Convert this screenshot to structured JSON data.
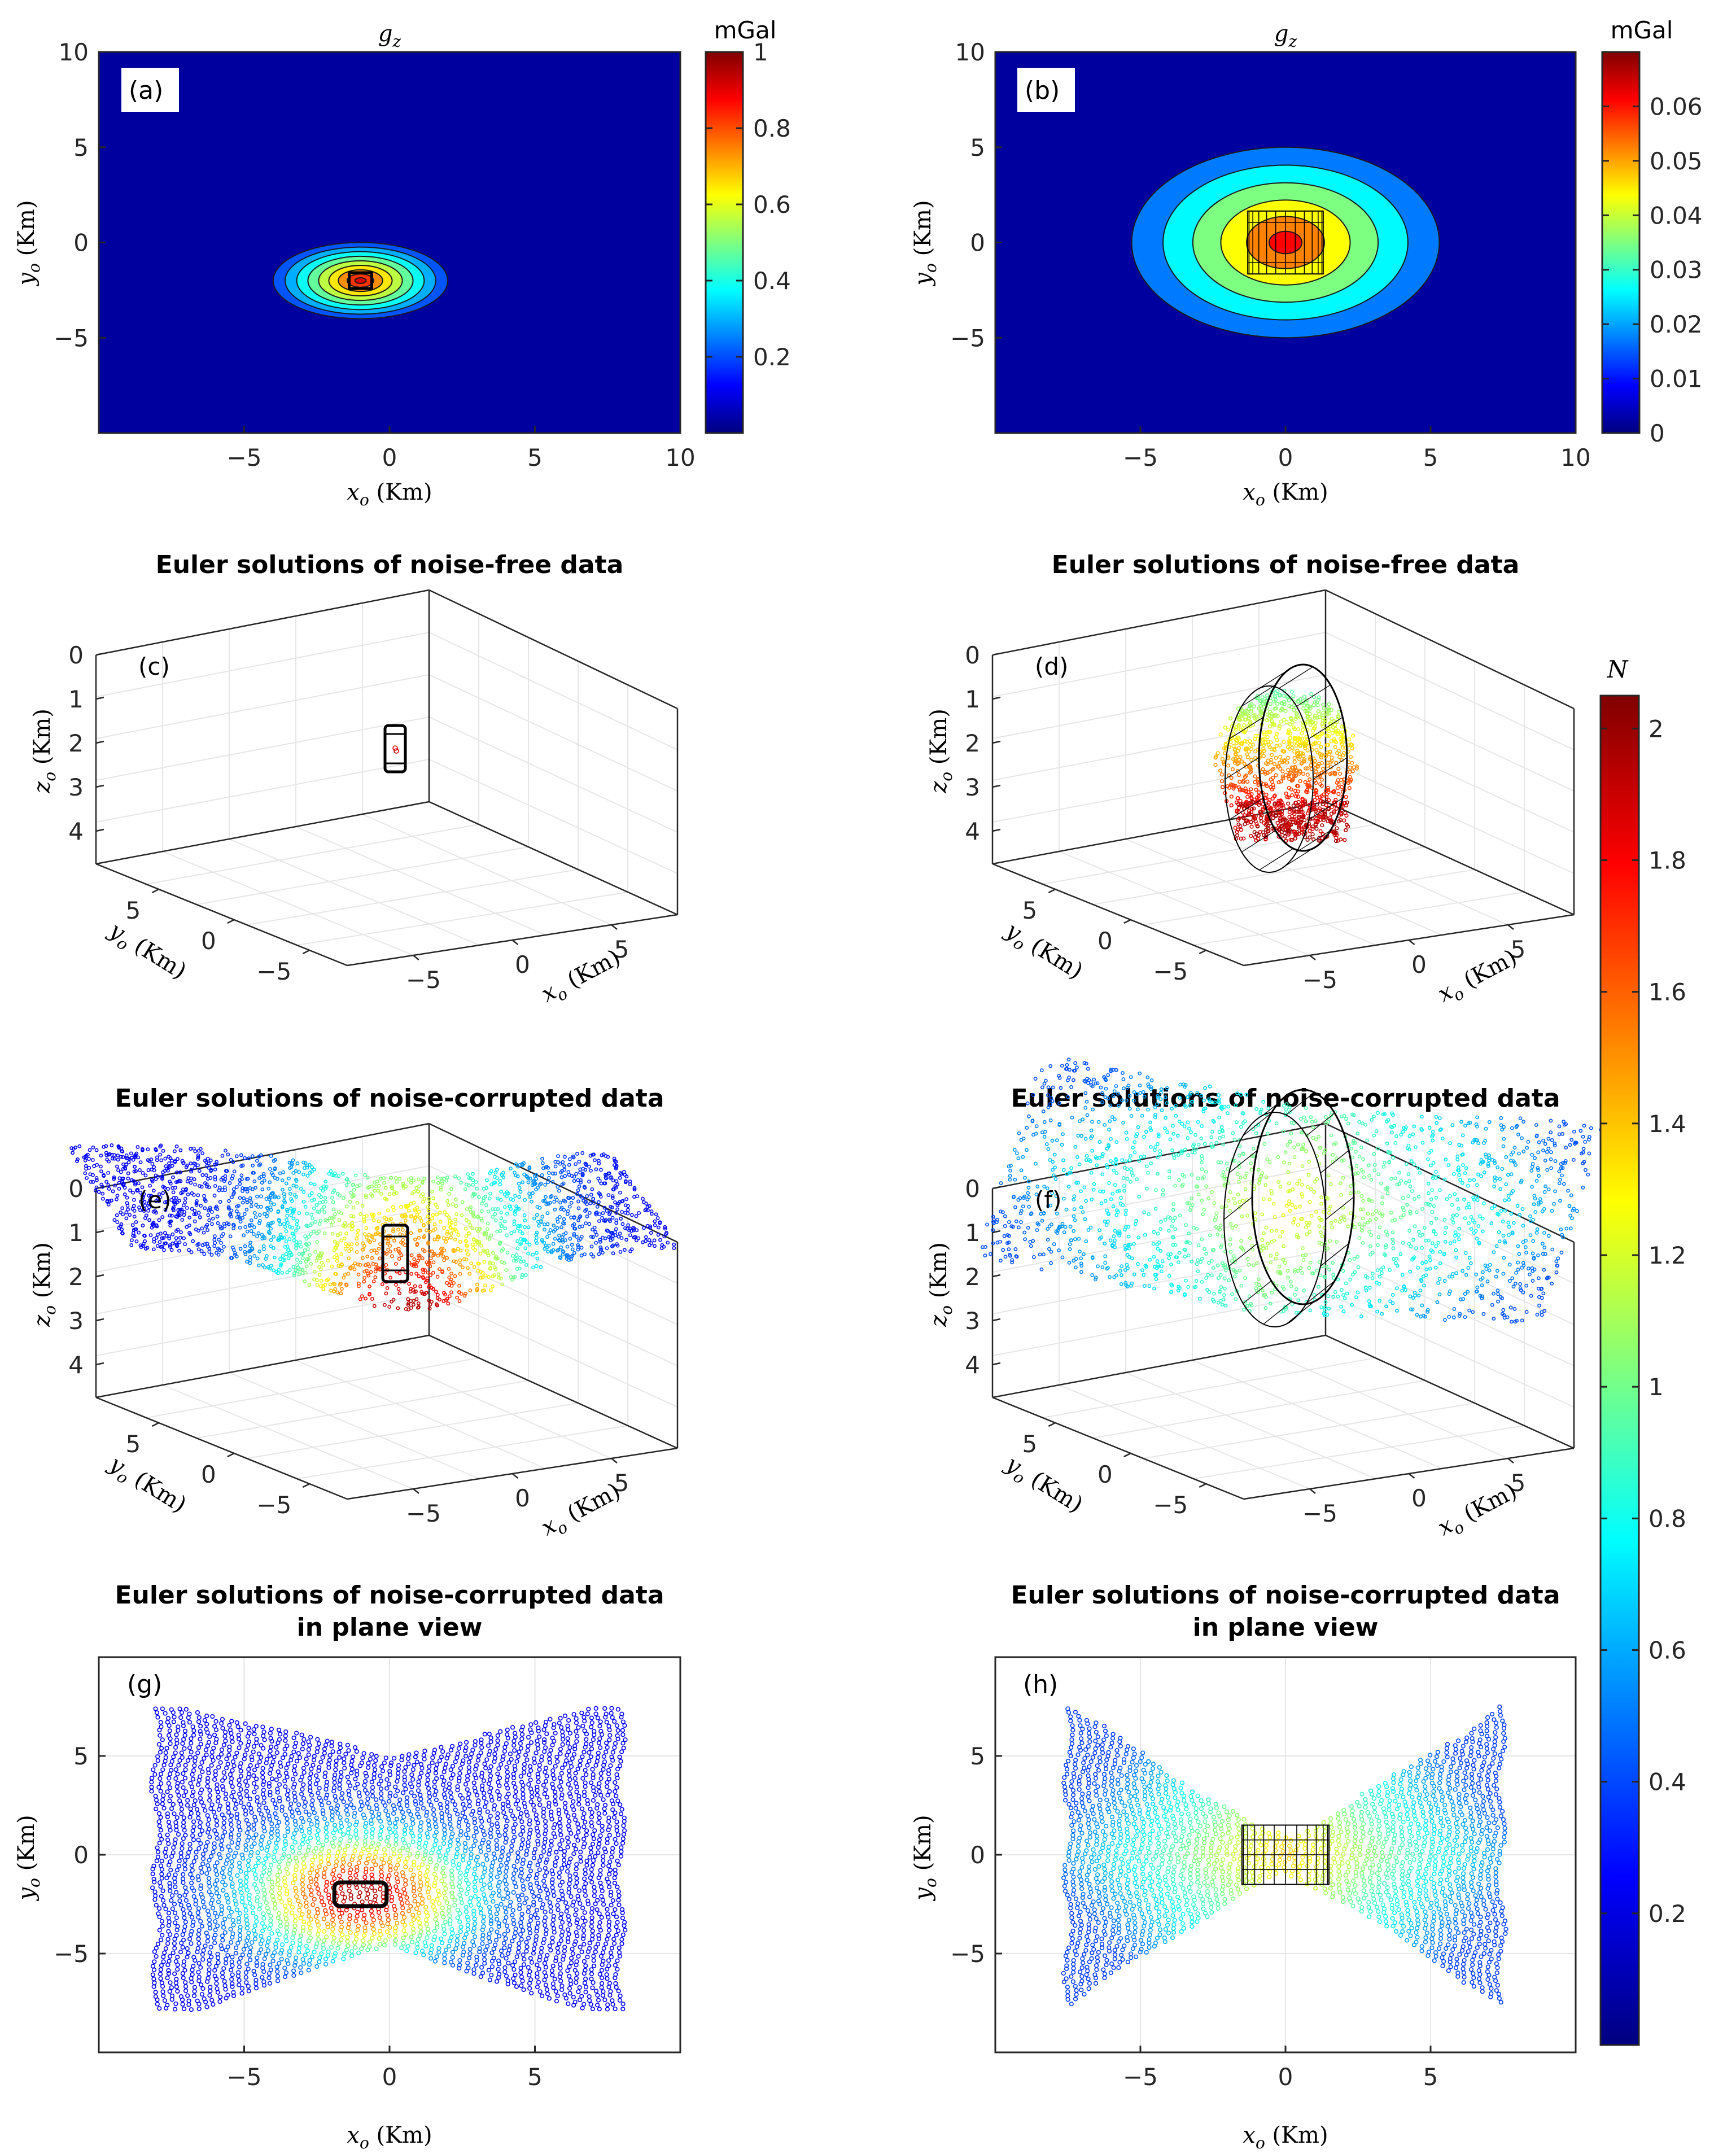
{
  "colors": {
    "jet": [
      "#00007f",
      "#0000ff",
      "#007fff",
      "#00ffff",
      "#7fff7f",
      "#ffff00",
      "#ff7f00",
      "#ff0000",
      "#7f0000"
    ],
    "contour_line": "#1a1a1a",
    "axis": "#262626",
    "grid": "#e6e6e6"
  },
  "chart_data": [
    {
      "id": "a",
      "panel_label": "(a)",
      "type": "heatmap",
      "title": "g",
      "title_sub": "z",
      "xlabel": "x",
      "xlabel_sub": "o",
      "xlabel_unit": " (Km)",
      "ylabel": "y",
      "ylabel_sub": "o",
      "ylabel_unit": " (Km)",
      "xlim": [
        -10,
        10
      ],
      "ylim": [
        -10,
        10
      ],
      "xticks": [
        -5,
        0,
        5,
        10
      ],
      "yticks": [
        -5,
        0,
        5,
        10
      ],
      "source_center": [
        -1,
        -2
      ],
      "anomaly_halfwidth": [
        3,
        2
      ],
      "contour_levels": 9,
      "colorbar": {
        "label": "mGal",
        "range": [
          0,
          1
        ],
        "ticks": [
          "0.2",
          "0.4",
          "0.6",
          "0.8",
          "1"
        ]
      }
    },
    {
      "id": "b",
      "panel_label": "(b)",
      "type": "heatmap",
      "title": "g",
      "title_sub": "z",
      "xlabel": "x",
      "xlabel_sub": "o",
      "xlabel_unit": " (Km)",
      "ylabel": "y",
      "ylabel_sub": "o",
      "ylabel_unit": " (Km)",
      "xlim": [
        -10,
        10
      ],
      "ylim": [
        -10,
        10
      ],
      "xticks": [
        -5,
        0,
        5,
        10
      ],
      "yticks": [
        -5,
        0,
        5,
        10
      ],
      "source_center": [
        0,
        0
      ],
      "anomaly_halfwidth": [
        5.3,
        5
      ],
      "contour_levels": 6,
      "colorbar": {
        "label": "mGal",
        "range": [
          0,
          0.07
        ],
        "ticks": [
          "0",
          "0.01",
          "0.02",
          "0.03",
          "0.04",
          "0.05",
          "0.06"
        ]
      }
    },
    {
      "id": "c",
      "panel_label": "(c)",
      "type": "scatter3d",
      "title": "Euler solutions of noise-free data",
      "zlabel": "z",
      "zlabel_sub": "o",
      "ylabel": "y",
      "ylabel_sub": "o",
      "xlabel": "x",
      "xlabel_sub": "o",
      "unit": " (Km)",
      "zticks": [
        "0",
        "1",
        "2",
        "3",
        "4"
      ],
      "yticks": [
        "5",
        "0",
        "−5"
      ],
      "xticks": [
        "−5",
        "0",
        "5"
      ],
      "cloud": "point"
    },
    {
      "id": "d",
      "panel_label": "(d)",
      "type": "scatter3d",
      "title": "Euler solutions of noise-free data",
      "zlabel": "z",
      "zlabel_sub": "o",
      "ylabel": "y",
      "ylabel_sub": "o",
      "xlabel": "x",
      "xlabel_sub": "o",
      "unit": " (Km)",
      "zticks": [
        "0",
        "1",
        "2",
        "3",
        "4"
      ],
      "yticks": [
        "5",
        "0",
        "−5"
      ],
      "xticks": [
        "−5",
        "0",
        "5"
      ],
      "cloud": "blob"
    },
    {
      "id": "e",
      "panel_label": "(e)",
      "type": "scatter3d",
      "title": "Euler solutions of noise-corrupted data",
      "zlabel": "z",
      "zlabel_sub": "o",
      "ylabel": "y",
      "ylabel_sub": "o",
      "xlabel": "x",
      "xlabel_sub": "o",
      "unit": " (Km)",
      "zticks": [
        "0",
        "1",
        "2",
        "3",
        "4"
      ],
      "yticks": [
        "5",
        "0",
        "−5"
      ],
      "xticks": [
        "−5",
        "0",
        "5"
      ],
      "cloud": "sheet"
    },
    {
      "id": "f",
      "panel_label": "(f)",
      "type": "scatter3d",
      "title": "Euler solutions of noise-corrupted data",
      "zlabel": "z",
      "zlabel_sub": "o",
      "ylabel": "y",
      "ylabel_sub": "o",
      "xlabel": "x",
      "xlabel_sub": "o",
      "unit": " (Km)",
      "zticks": [
        "0",
        "1",
        "2",
        "3",
        "4"
      ],
      "yticks": [
        "5",
        "0",
        "−5"
      ],
      "xticks": [
        "−5",
        "0",
        "5"
      ],
      "cloud": "saddle"
    },
    {
      "id": "g",
      "panel_label": "(g)",
      "type": "scatter",
      "title": "Euler solutions of noise-corrupted data",
      "title2": "in plane view",
      "xlabel": "x",
      "xlabel_sub": "o",
      "xlabel_unit": " (Km)",
      "ylabel": "y",
      "ylabel_sub": "o",
      "ylabel_unit": " (Km)",
      "xlim": [
        -10,
        10
      ],
      "ylim": [
        -10,
        10
      ],
      "xticks": [
        -5,
        0,
        5
      ],
      "yticks": [
        -5,
        0,
        5
      ],
      "source_center": [
        -1,
        -2
      ],
      "shape": "bowtie_g"
    },
    {
      "id": "h",
      "panel_label": "(h)",
      "type": "scatter",
      "title": "Euler solutions of noise-corrupted data",
      "title2": "in plane view",
      "xlabel": "x",
      "xlabel_sub": "o",
      "xlabel_unit": " (Km)",
      "ylabel": "y",
      "ylabel_sub": "o",
      "ylabel_unit": " (Km)",
      "xlim": [
        -10,
        10
      ],
      "ylim": [
        -10,
        10
      ],
      "xticks": [
        -5,
        0,
        5
      ],
      "yticks": [
        -5,
        0,
        5
      ],
      "source_center": [
        0,
        0
      ],
      "shape": "bowtie_h"
    }
  ],
  "colorbar_N": {
    "label": "N",
    "range": [
      0,
      2.05
    ],
    "ticks": [
      "0.2",
      "0.4",
      "0.6",
      "0.8",
      "1",
      "1.2",
      "1.4",
      "1.6",
      "1.8",
      "2"
    ]
  }
}
